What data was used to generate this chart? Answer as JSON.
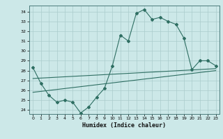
{
  "xlabel": "Humidex (Indice chaleur)",
  "bg_color": "#cce8e8",
  "line_color": "#2e6e62",
  "grid_color": "#aacccc",
  "x_ticks": [
    0,
    1,
    2,
    3,
    4,
    5,
    6,
    7,
    8,
    9,
    10,
    11,
    12,
    13,
    14,
    15,
    16,
    17,
    18,
    19,
    20,
    21,
    22,
    23
  ],
  "y_ticks": [
    24,
    25,
    26,
    27,
    28,
    29,
    30,
    31,
    32,
    33,
    34
  ],
  "ylim": [
    23.6,
    34.6
  ],
  "xlim": [
    -0.5,
    23.5
  ],
  "series1": [
    28.3,
    26.7,
    25.5,
    24.8,
    25.0,
    24.8,
    23.7,
    24.3,
    25.3,
    26.2,
    28.5,
    31.6,
    31.0,
    33.8,
    34.2,
    33.2,
    33.4,
    33.0,
    32.7,
    31.3,
    28.1,
    29.0,
    29.0,
    28.5
  ],
  "series2_x": [
    0,
    23
  ],
  "series2_y": [
    27.2,
    28.2
  ],
  "series3_x": [
    0,
    23
  ],
  "series3_y": [
    25.8,
    28.0
  ]
}
